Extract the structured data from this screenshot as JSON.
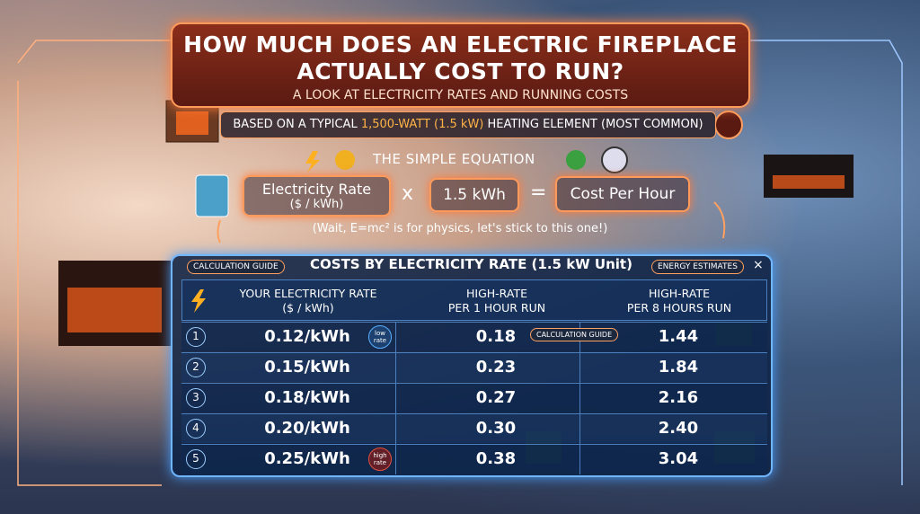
{
  "header": {
    "title_line1": "HOW MUCH DOES AN ELECTRIC FIREPLACE",
    "title_line2": "ACTUALLY COST TO RUN?",
    "subtitle": "A LOOK AT ELECTRICITY RATES AND RUNNING COSTS"
  },
  "basis": {
    "before": "BASED ON A TYPICAL",
    "highlight": "1,500-WATT (1.5 kW)",
    "after": "HEATING ELEMENT (MOST COMMON)"
  },
  "equation": {
    "title": "THE SIMPLE EQUATION",
    "term1": "Electricity Rate",
    "term1_unit": "($ / kWh)",
    "op1": "x",
    "term2": "1.5 kWh",
    "op2": "=",
    "term3": "Cost Per Hour",
    "note": "(Wait, E=mc² is for physics, let's stick to this one!)"
  },
  "table": {
    "tab_left": "CALCULATION GUIDE",
    "title": "COSTS BY ELECTRICITY RATE (1.5 kW Unit)",
    "tab_right": "ENERGY ESTIMATES",
    "close": "×",
    "headers": [
      {
        "line1": "YOUR ELECTRICITY RATE",
        "line2": "($ / kWh)"
      },
      {
        "line1": "HIGH-RATE",
        "line2": "PER 1 HOUR RUN"
      },
      {
        "line1": "HIGH-RATE",
        "line2": "PER 8 HOURS RUN"
      }
    ],
    "row_overlay": "CALCULATION GUIDE",
    "rows": [
      {
        "index": "1",
        "rate": "0.12/kWh",
        "badge": "low rate",
        "hour": "0.18",
        "eight": "1.44"
      },
      {
        "index": "2",
        "rate": "0.15/kWh",
        "hour": "0.23",
        "eight": "1.84"
      },
      {
        "index": "3",
        "rate": "0.18/kWh",
        "hour": "0.27",
        "eight": "2.16"
      },
      {
        "index": "4",
        "rate": "0.20/kWh",
        "hour": "0.30",
        "eight": "2.40"
      },
      {
        "index": "5",
        "rate": "0.25/kWh",
        "badge": "high rate",
        "hour": "0.38",
        "eight": "3.04"
      }
    ]
  }
}
